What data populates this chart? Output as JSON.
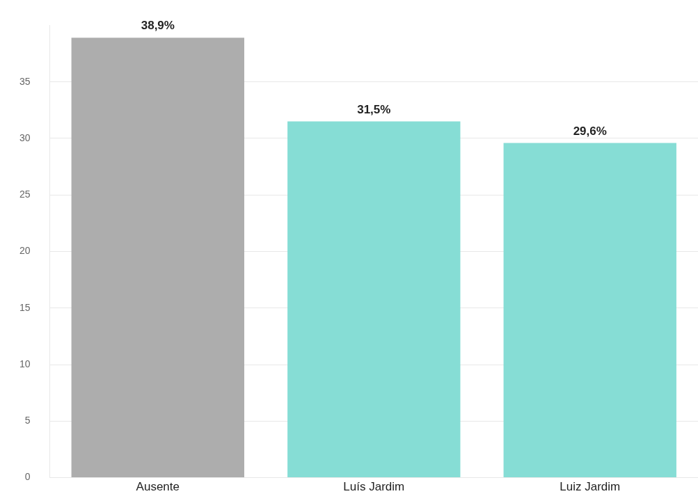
{
  "chart_data": {
    "type": "bar",
    "categories": [
      "Ausente",
      "Luís Jardim",
      "Luiz Jardim"
    ],
    "values": [
      38.9,
      31.5,
      29.6
    ],
    "colors": [
      "#adadad",
      "#86ddd5",
      "#86ddd5"
    ],
    "value_labels": [
      "38,9%",
      "31,5%",
      "29,6%"
    ],
    "ylim": [
      0,
      40
    ],
    "yticks": [
      0,
      5,
      10,
      15,
      20,
      25,
      30,
      35
    ],
    "grid": "y",
    "legend": false
  }
}
